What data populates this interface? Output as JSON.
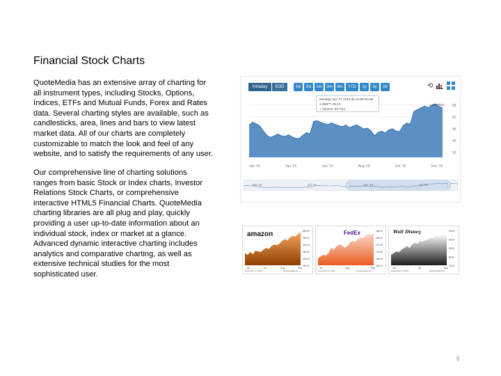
{
  "title": "Financial Stock Charts",
  "paragraph1_lines": [
    "QuoteMedia has an extensive array of charting for",
    "all instrument types, including Stocks, Options,",
    "Indices, ETFs and Mutual Funds, Forex and Rates",
    "data. Several charting styles are available, such as",
    "candlesticks, area, lines and bars to view latest",
    "market data. All of our charts are completely",
    "customizable to match the look and feel of any",
    "website, and to satisfy the requirements of any user."
  ],
  "paragraph2_lines": [
    "Our comprehensive line of charting solutions",
    "ranges from basic Stock or Index charts, Investor",
    "Relations Stock Charts, or comprehensive",
    "interactive HTML5 Financial Charts. QuoteMedia",
    "charting libraries are all plug and play, quickly",
    "providing a user up-to-date information about an",
    "individual stock, index or market at a glance.",
    "Advanced dynamic interactive charting includes",
    "analytics and comparative charting, as well as",
    "extensive technical studies for the most",
    "sophisticated user."
  ],
  "page_number": "5",
  "chart_widget": {
    "mode_buttons": [
      "Intraday",
      "EOD"
    ],
    "range_buttons": [
      "1w",
      "2w",
      "1m",
      "3m",
      "6m",
      "YTD",
      "1y",
      "5y",
      "All"
    ],
    "tool_icons": [
      "refresh-icon",
      "bar-chart-icon",
      "settings-grid-icon"
    ],
    "tooltip": {
      "date": "Monday, Apr. 27 2015 @ 12:00:00 AM",
      "symbol": "MSFT: 48.13",
      "volume": "Volume: 60.72m"
    },
    "last_price_label": "Last Price",
    "colors": {
      "accent": "#2f86c9",
      "dark": "#31638f",
      "area": "#5c8fc4"
    }
  },
  "chart_data": {
    "type": "area",
    "x_ticks": [
      "Jan '15",
      "Apr '15",
      "Jun '15",
      "Aug '15",
      "Oct '15",
      "Dec '15"
    ],
    "y_ticks": [
      55,
      50,
      45,
      40,
      35
    ],
    "ylim": [
      33,
      57
    ],
    "navigator_ticks": [
      "Jan '14",
      "Jul '14",
      "Jan '15",
      "Jul '15"
    ],
    "values": [
      46.5,
      47.8,
      47.1,
      46.2,
      44.1,
      42.2,
      41.4,
      42.0,
      42.8,
      42.1,
      41.8,
      42.5,
      41.6,
      41.0,
      40.9,
      42.3,
      43.4,
      42.9,
      48.1,
      48.4,
      47.7,
      47.2,
      46.8,
      47.5,
      46.9,
      46.3,
      45.9,
      46.6,
      45.5,
      46.1,
      46.7,
      45.8,
      44.9,
      45.3,
      44.2,
      42.1,
      43.5,
      44.0,
      43.2,
      44.6,
      45.0,
      44.1,
      43.8,
      46.3,
      47.4,
      47.0,
      52.3,
      53.1,
      53.8,
      54.6,
      53.9,
      54.9,
      55.5,
      54.3,
      53.8
    ],
    "grid": true,
    "legend": "none"
  },
  "thumbnails": [
    {
      "logo": "amazon",
      "color_top": "#f3a35e",
      "color_bottom": "#8e3f00",
      "y_labels": [
        "500.00",
        "450.00",
        "400.00",
        "350.00",
        "300.00",
        "250.00"
      ],
      "x_labels": [
        "Jun",
        "Jul",
        "Aug",
        "Sep"
      ],
      "footer_left": "December 1, 2014",
      "footer_right": "Quotemedia.com"
    },
    {
      "logo": "FedEx",
      "color_top": "#fbd8c9",
      "color_bottom": "#e85c22",
      "y_labels": [
        "185.00",
        "180.00",
        "175.00",
        "170.00",
        "165.00",
        "160.00"
      ],
      "x_labels": [
        "Jul",
        "Aug",
        "Sep"
      ],
      "footer_left": "December 1, 2014",
      "footer_right": "Quotemedia.com"
    },
    {
      "logo": "Walt Disney",
      "color_top": "#ffffff",
      "color_bottom": "#1c1c1c",
      "y_labels": [
        "95.00",
        "90.00",
        "85.00",
        "80.00",
        "75.00"
      ],
      "x_labels": [
        "Jun",
        "Jul",
        "Aug"
      ],
      "footer_left": "December 1, 2014",
      "footer_right": "Quotemedia.com"
    }
  ]
}
